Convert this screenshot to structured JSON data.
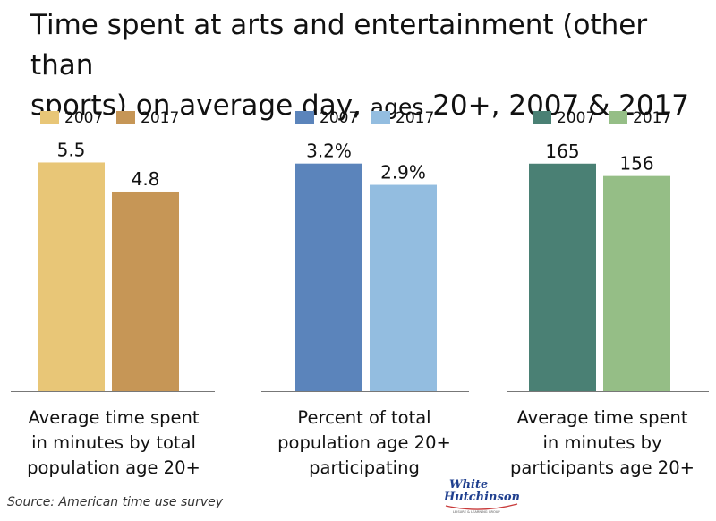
{
  "title": {
    "line1": "Time spent at arts and entertainment (other than",
    "line2a": "sports) on average day, ",
    "line2b": "ages",
    "line2c": " 20+, 2007 & 2017"
  },
  "source": "Source: American time use survey",
  "logo": {
    "word1": "White",
    "word2": "Hutchinson",
    "tagline": "LEISURE & LEARNING GROUP"
  },
  "chart_data": [
    {
      "type": "bar",
      "categories": [
        "2007",
        "2017"
      ],
      "values": [
        5.5,
        4.8
      ],
      "value_labels": [
        "5.5",
        "4.8"
      ],
      "colors": [
        "#E8C677",
        "#C69656"
      ],
      "legend": [
        "2007",
        "2017"
      ],
      "xlabel": "Average time spent in minutes by total population age 20+",
      "caption_lines": [
        "Average time spent",
        "in minutes by total",
        "population age 20+"
      ],
      "ylim": [
        0,
        6.5
      ]
    },
    {
      "type": "bar",
      "categories": [
        "2007",
        "2017"
      ],
      "values": [
        3.2,
        2.9
      ],
      "value_labels": [
        "3.2%",
        "2.9%"
      ],
      "colors": [
        "#5B84BB",
        "#93BDE0"
      ],
      "legend": [
        "2007",
        "2017"
      ],
      "xlabel": "Percent of total population age 20+ participating",
      "caption_lines": [
        "Percent of total",
        "population age 20+",
        "participating"
      ],
      "ylim": [
        0,
        3.8
      ]
    },
    {
      "type": "bar",
      "categories": [
        "2007",
        "2017"
      ],
      "values": [
        165,
        156
      ],
      "value_labels": [
        "165",
        "156"
      ],
      "colors": [
        "#4A8074",
        "#95BE86"
      ],
      "legend": [
        "2007",
        "2017"
      ],
      "xlabel": "Average time spent in minutes by participants age 20+",
      "caption_lines": [
        "Average time spent",
        "in minutes by",
        "participants age 20+"
      ],
      "ylim": [
        0,
        196
      ]
    }
  ]
}
